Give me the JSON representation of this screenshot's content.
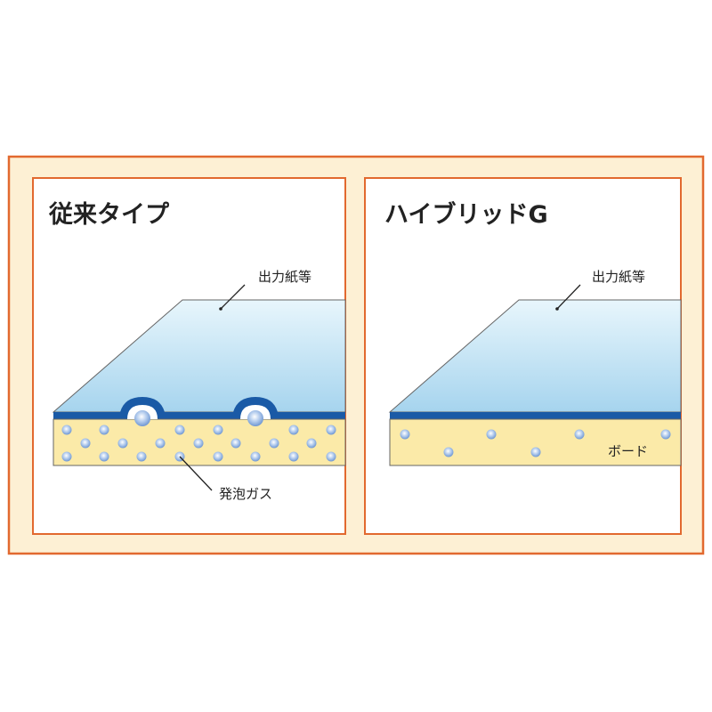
{
  "left_panel": {
    "title": "従来タイプ",
    "paper_label": "出力紙等",
    "gas_label": "発泡ガス"
  },
  "right_panel": {
    "title": "ハイブリッドG",
    "paper_label": "出力紙等",
    "board_label": "ボード"
  },
  "colors": {
    "frame_border": "#e2692f",
    "frame_fill": "#fdf0d4",
    "paper_top": "#e6f5fc",
    "paper_bottom": "#a8d6ef",
    "film_blue": "#1a5aa6",
    "board_yellow": "#fbeaa8",
    "bubble": "#8fb3e0"
  }
}
